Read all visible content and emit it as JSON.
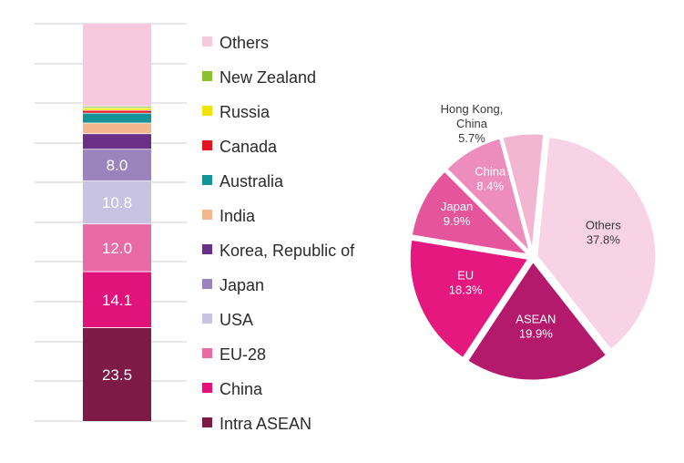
{
  "chart_data": [
    {
      "type": "bar",
      "stacked": true,
      "unit": "%",
      "categories": [
        ""
      ],
      "grid": true,
      "series": [
        {
          "name": "Intra ASEAN",
          "value": 23.5,
          "color": "#7d1a46",
          "label": "23.5"
        },
        {
          "name": "China",
          "value": 14.1,
          "color": "#e2127b",
          "label": "14.1"
        },
        {
          "name": "EU-28",
          "value": 12.0,
          "color": "#e86ba6",
          "label": "12.0"
        },
        {
          "name": "USA",
          "value": 10.8,
          "color": "#c8c3e2",
          "label": "10.8"
        },
        {
          "name": "Japan",
          "value": 8.0,
          "color": "#9b84bd",
          "label": "8.0"
        },
        {
          "name": "Korea, Republic of",
          "value": 3.9,
          "color": "#6a2f87",
          "label": ""
        },
        {
          "name": "India",
          "value": 2.7,
          "color": "#f4b68c",
          "label": ""
        },
        {
          "name": "Australia",
          "value": 2.5,
          "color": "#149398",
          "label": ""
        },
        {
          "name": "Canada",
          "value": 0.7,
          "color": "#e3131f",
          "label": ""
        },
        {
          "name": "Russia",
          "value": 0.6,
          "color": "#f1e200",
          "label": ""
        },
        {
          "name": "New Zealand",
          "value": 0.4,
          "color": "#8bc12e",
          "label": ""
        },
        {
          "name": "Others",
          "value": 20.8,
          "color": "#f6c9df",
          "label": ""
        }
      ],
      "legend": {
        "placement": "right",
        "order": [
          "Others",
          "New Zealand",
          "Russia",
          "Canada",
          "Australia",
          "India",
          "Korea, Republic of",
          "Japan",
          "USA",
          "EU-28",
          "China",
          "Intra ASEAN"
        ]
      },
      "ylim": [
        0,
        100
      ]
    },
    {
      "type": "pie",
      "exploded": true,
      "slices": [
        {
          "label": "Others",
          "value": 37.8,
          "display": "37.8%",
          "color": "#f7d3e5",
          "text_color": "#3a3a3a"
        },
        {
          "label": "ASEAN",
          "value": 19.9,
          "display": "19.9%",
          "color": "#b41a6b",
          "text_color": "#ffffff"
        },
        {
          "label": "EU",
          "value": 18.3,
          "display": "18.3%",
          "color": "#e4187f",
          "text_color": "#ffffff"
        },
        {
          "label": "Japan",
          "value": 9.9,
          "display": "9.9%",
          "color": "#e4559b",
          "text_color": "#ffffff"
        },
        {
          "label": "China",
          "value": 8.4,
          "display": "8.4%",
          "color": "#ec8dbd",
          "text_color": "#ffffff"
        },
        {
          "label": "Hong Kong, China",
          "value": 5.7,
          "display": "5.7%",
          "color": "#f2b6d3",
          "text_color": "#3a3a3a",
          "outside_label": true,
          "label_lines": [
            "Hong Kong,",
            "China"
          ]
        }
      ]
    }
  ]
}
